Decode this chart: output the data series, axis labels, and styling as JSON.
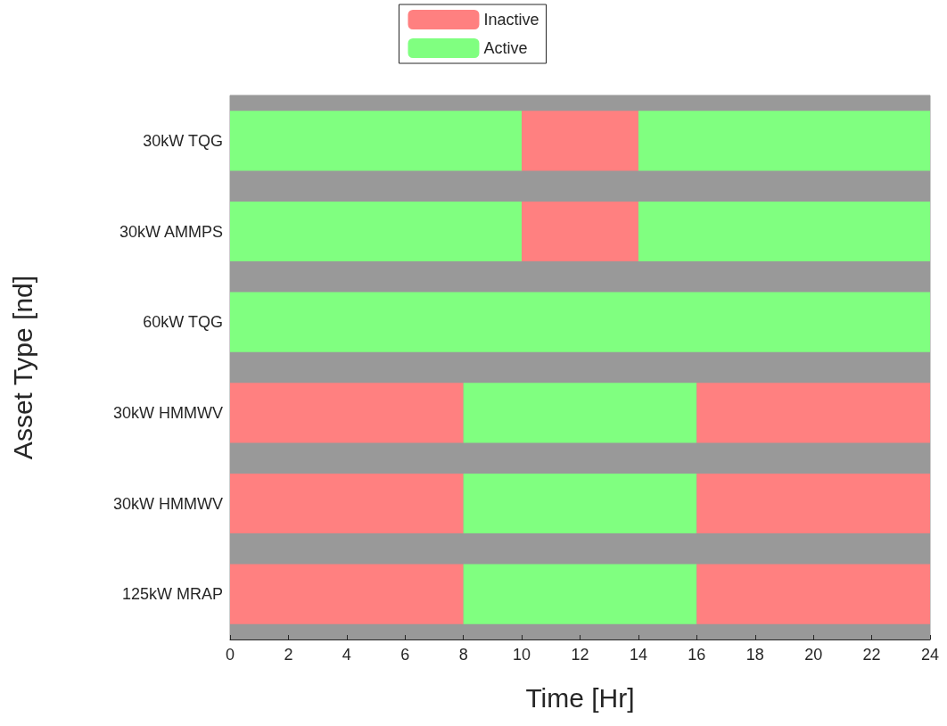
{
  "chart_data": {
    "type": "bar",
    "orientation": "horizontal",
    "stacked": true,
    "xlabel": "Time [Hr]",
    "ylabel": "Asset Type [nd]",
    "categories": [
      "30kW TQG",
      "30kW AMMPS",
      "60kW TQG",
      "30kW HMMWV",
      "30kW HMMWV",
      "125kW MRAP"
    ],
    "series": [
      {
        "name": "Inactive",
        "color": "#ff8080",
        "values": [
          0,
          0,
          0,
          8,
          8,
          8
        ]
      },
      {
        "name": "Active",
        "color": "#80ff80",
        "values": [
          10,
          10,
          24,
          8,
          8,
          8
        ]
      },
      {
        "color": "#ff8080",
        "values": [
          4,
          4,
          0,
          8,
          8,
          8
        ]
      },
      {
        "color": "#80ff80",
        "values": [
          10,
          10,
          0,
          0,
          0,
          0
        ]
      }
    ],
    "xlim": [
      0,
      24
    ],
    "xticks": [
      0,
      2,
      4,
      6,
      8,
      10,
      12,
      14,
      16,
      18,
      20,
      22,
      24
    ],
    "grid": false,
    "legend": "top"
  }
}
